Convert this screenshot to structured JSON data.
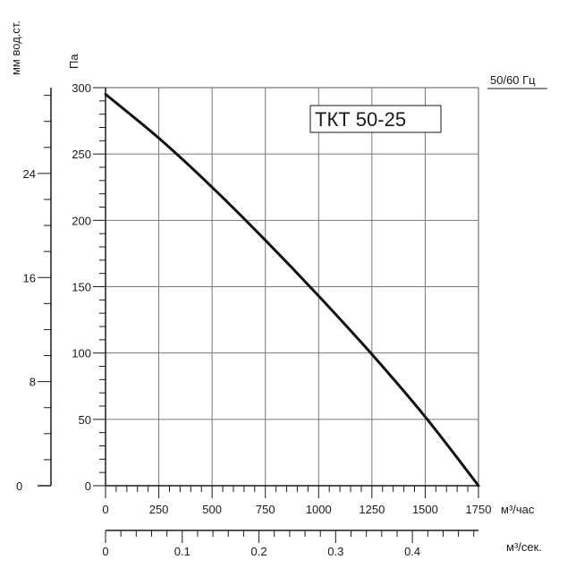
{
  "chart_data": {
    "type": "line",
    "title": "ТКТ 50-25",
    "frequency_label": "50/60 Гц",
    "axes": {
      "y_primary": {
        "label": "Па",
        "ticks": [
          0,
          50,
          100,
          150,
          200,
          250,
          300
        ],
        "ylim": [
          0,
          300
        ]
      },
      "y_secondary": {
        "label": "мм вод.ст.",
        "ticks": [
          0,
          8,
          16,
          24
        ]
      },
      "x_primary": {
        "label": "м³/час",
        "ticks": [
          0,
          250,
          500,
          750,
          1000,
          1250,
          1500,
          1750
        ],
        "xlim": [
          0,
          1750
        ]
      },
      "x_secondary": {
        "label": "м³/сек.",
        "ticks": [
          "0",
          "0.1",
          "0.2",
          "0.3",
          "0.4"
        ]
      }
    },
    "grid": true,
    "series": [
      {
        "x": [
          0,
          250,
          500,
          750,
          1000,
          1250,
          1500,
          1750
        ],
        "y": [
          295,
          262,
          225,
          185,
          143,
          99,
          52,
          0
        ]
      }
    ]
  }
}
